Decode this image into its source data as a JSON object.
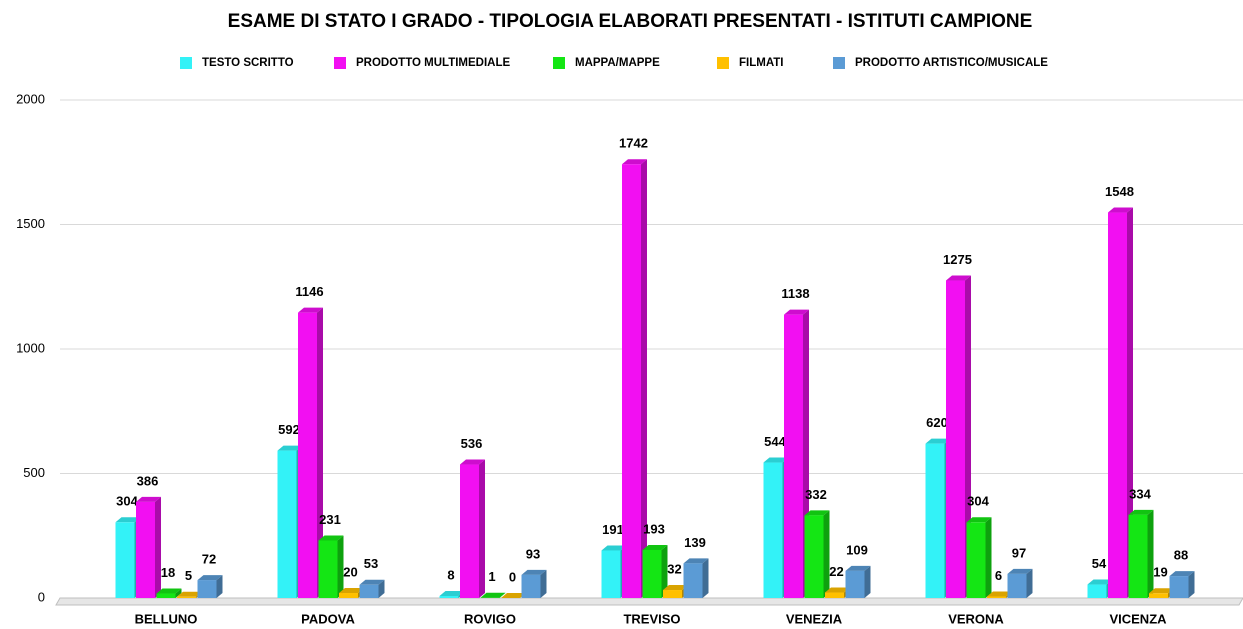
{
  "chart_data": {
    "type": "bar3d",
    "title": "ESAME DI STATO I GRADO - TIPOLOGIA ELABORATI PRESENTATI - ISTITUTI CAMPIONE",
    "categories": [
      "BELLUNO",
      "PADOVA",
      "ROVIGO",
      "TREVISO",
      "VENEZIA",
      "VERONA",
      "VICENZA"
    ],
    "series": [
      {
        "name": "TESTO SCRITTO",
        "color": "#33f2f7",
        "values": [
          304,
          592,
          8,
          191,
          544,
          620,
          54
        ]
      },
      {
        "name": "PRODOTTO MULTIMEDIALE",
        "color": "#f20ff2",
        "values": [
          386,
          1146,
          536,
          1742,
          1138,
          1275,
          1548
        ]
      },
      {
        "name": "MAPPA/MAPPE",
        "color": "#14e614",
        "values": [
          18,
          231,
          1,
          193,
          332,
          304,
          334
        ]
      },
      {
        "name": "FILMATI",
        "color": "#ffc000",
        "values": [
          5,
          20,
          0,
          32,
          22,
          6,
          19
        ]
      },
      {
        "name": "PRODOTTO ARTISTICO/MUSICALE",
        "color": "#5b9bd5",
        "values": [
          72,
          53,
          93,
          139,
          109,
          97,
          88
        ]
      }
    ],
    "ylim": [
      0,
      2000
    ],
    "yticks": [
      0,
      500,
      1000,
      1500,
      2000
    ],
    "grid": true,
    "legend": "top"
  }
}
